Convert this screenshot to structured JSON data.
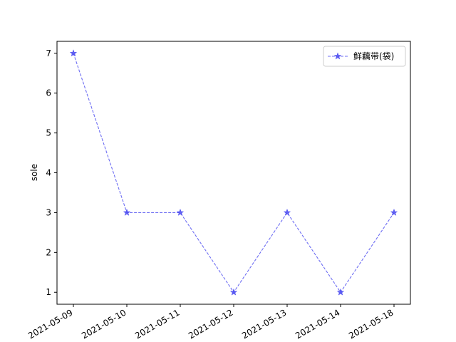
{
  "chart_data": {
    "type": "line",
    "title": "",
    "xlabel": "",
    "ylabel": "sole",
    "categories": [
      "2021-05-09",
      "2021-05-10",
      "2021-05-11",
      "2021-05-12",
      "2021-05-13",
      "2021-05-14",
      "2021-05-18"
    ],
    "series": [
      {
        "name": "鲜藕带(袋)",
        "values": [
          7,
          3,
          3,
          1,
          3,
          1,
          3
        ],
        "color": "#4a4af0",
        "line_style": "dashed",
        "marker": "star"
      }
    ],
    "yticks": [
      1,
      2,
      3,
      4,
      5,
      6,
      7
    ],
    "ylim": [
      0.7,
      7.3
    ],
    "grid": false,
    "legend_position": "top-right"
  }
}
